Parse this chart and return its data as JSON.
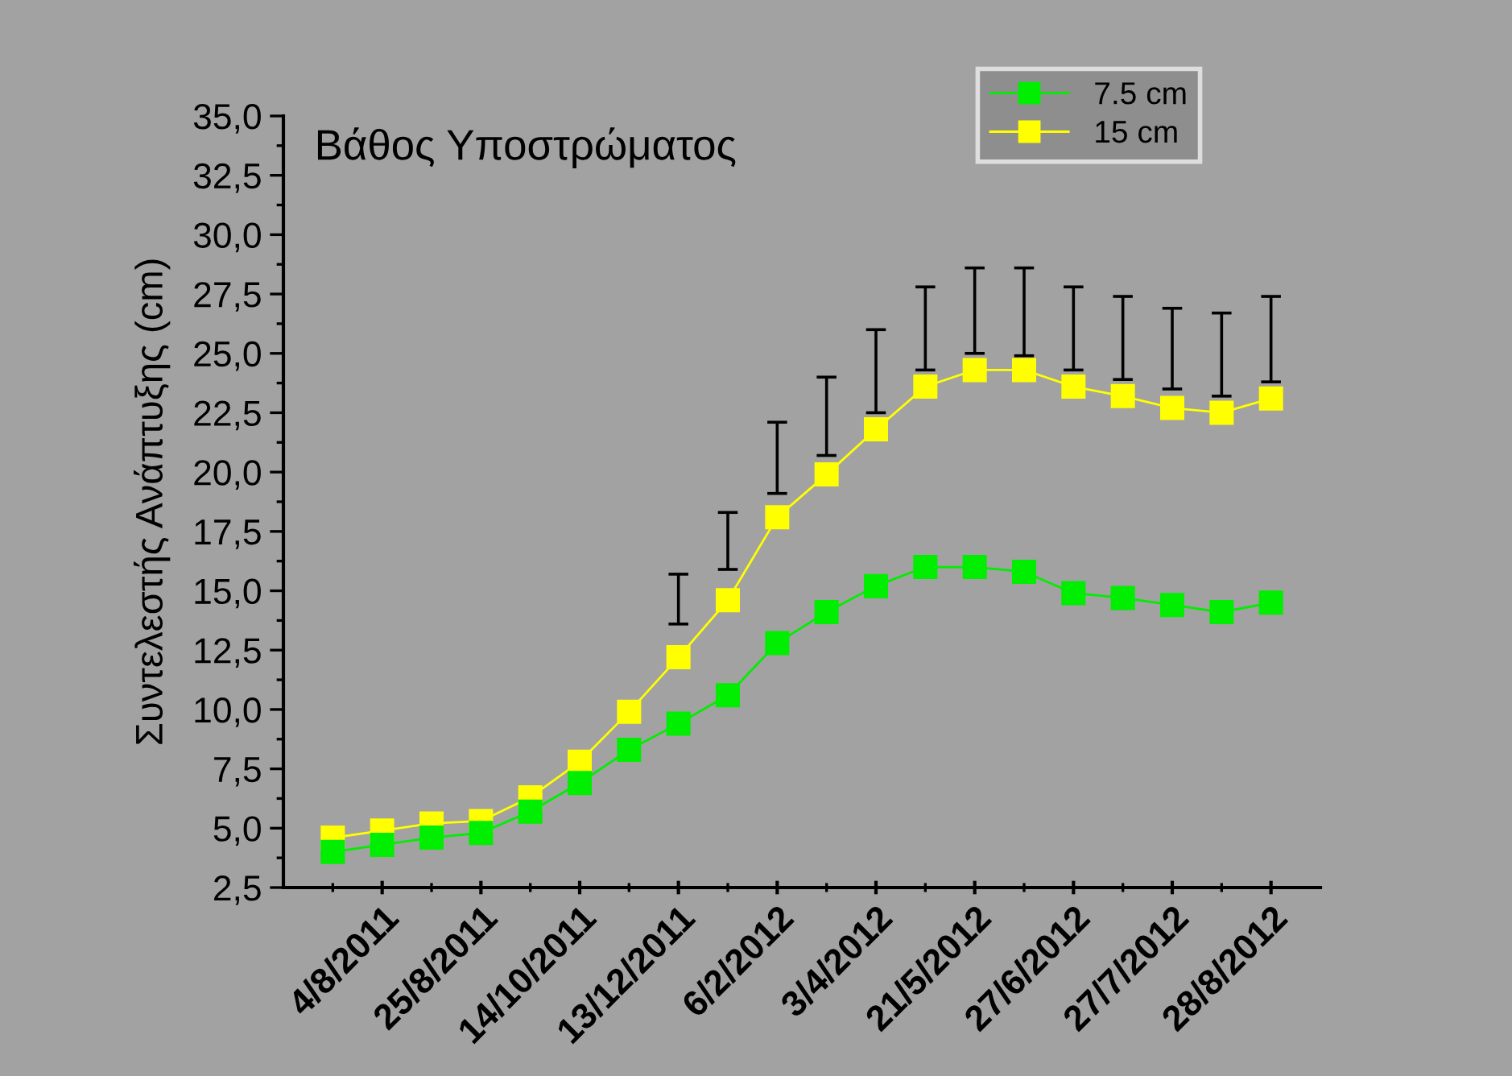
{
  "chart_data": {
    "type": "line",
    "title": "Βάθος Υποστρώματος",
    "ylabel": "Συντελεστής Ανάπτυξης (cm)",
    "categories": [
      null,
      "4/8/2011",
      null,
      "25/8/2011",
      null,
      "14/10/2011",
      null,
      "13/12/2011",
      null,
      "6/2/2012",
      null,
      "3/4/2012",
      null,
      "21/5/2012",
      null,
      "27/6/2012",
      null,
      "27/7/2012",
      null,
      "28/8/2012"
    ],
    "series": [
      {
        "name": "7.5 cm",
        "color": "#00ee00",
        "values": [
          4.0,
          4.3,
          4.6,
          4.8,
          5.7,
          6.9,
          8.3,
          9.4,
          10.6,
          12.8,
          14.1,
          15.2,
          16.0,
          16.0,
          15.8,
          14.9,
          14.7,
          14.4,
          14.1,
          14.5
        ]
      },
      {
        "name": "15 cm",
        "color": "#ffff00",
        "values": [
          4.6,
          4.9,
          5.2,
          5.3,
          6.3,
          7.8,
          9.9,
          12.2,
          14.6,
          18.1,
          19.9,
          21.8,
          23.6,
          24.3,
          24.3,
          23.6,
          23.2,
          22.7,
          22.5,
          23.1
        ],
        "errors": [
          null,
          null,
          null,
          null,
          null,
          null,
          null,
          [
            13.6,
            15.7
          ],
          [
            15.9,
            18.3
          ],
          [
            19.1,
            22.1
          ],
          [
            20.7,
            24.0
          ],
          [
            22.5,
            26.0
          ],
          [
            24.3,
            27.8
          ],
          [
            25.0,
            28.6
          ],
          [
            24.9,
            28.6
          ],
          [
            24.3,
            27.8
          ],
          [
            23.9,
            27.4
          ],
          [
            23.5,
            26.9
          ],
          [
            23.2,
            26.7
          ],
          [
            23.8,
            27.4
          ]
        ]
      }
    ],
    "ylim": [
      2.5,
      35
    ],
    "yticks": [
      {
        "value": 2.5,
        "label": "2,5"
      },
      {
        "value": 3.75,
        "label": null
      },
      {
        "value": 5,
        "label": "5,0"
      },
      {
        "value": 6.25,
        "label": null
      },
      {
        "value": 7.5,
        "label": "7,5"
      },
      {
        "value": 8.75,
        "label": null
      },
      {
        "value": 10,
        "label": "10,0"
      },
      {
        "value": 11.25,
        "label": null
      },
      {
        "value": 12.5,
        "label": "12,5"
      },
      {
        "value": 13.75,
        "label": null
      },
      {
        "value": 15,
        "label": "15,0"
      },
      {
        "value": 16.25,
        "label": null
      },
      {
        "value": 17.5,
        "label": "17,5"
      },
      {
        "value": 18.75,
        "label": null
      },
      {
        "value": 20,
        "label": "20,0"
      },
      {
        "value": 21.25,
        "label": null
      },
      {
        "value": 22.5,
        "label": "22,5"
      },
      {
        "value": 23.75,
        "label": null
      },
      {
        "value": 25,
        "label": "25,0"
      },
      {
        "value": 26.25,
        "label": null
      },
      {
        "value": 27.5,
        "label": "27,5"
      },
      {
        "value": 28.75,
        "label": null
      },
      {
        "value": 30,
        "label": "30,0"
      },
      {
        "value": 31.25,
        "label": null
      },
      {
        "value": 32.5,
        "label": "32,5"
      },
      {
        "value": 33.75,
        "label": null
      },
      {
        "value": 35,
        "label": "35,0"
      }
    ],
    "marker": "square",
    "line_style": "solid",
    "grid": false,
    "legend": "top right"
  }
}
